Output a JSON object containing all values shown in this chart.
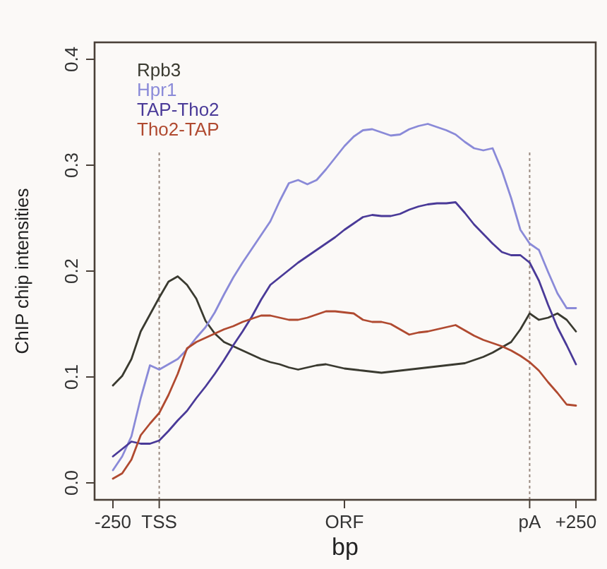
{
  "chart_data": {
    "type": "line",
    "xlabel": "bp",
    "ylabel": "ChIP chip intensities",
    "categories": [
      "-250",
      null,
      null,
      null,
      null,
      "TSS",
      null,
      null,
      null,
      null,
      null,
      null,
      null,
      null,
      null,
      null,
      null,
      null,
      null,
      null,
      null,
      null,
      null,
      null,
      null,
      "ORF",
      null,
      null,
      null,
      null,
      null,
      null,
      null,
      null,
      null,
      null,
      null,
      null,
      null,
      null,
      null,
      null,
      null,
      null,
      null,
      "pA",
      null,
      null,
      null,
      null,
      "+250"
    ],
    "ylim": [
      -0.016,
      0.416
    ],
    "yticks": [
      {
        "value": 0,
        "label": "0.0"
      },
      0.1,
      0.2,
      0.3,
      0.4
    ],
    "grid": false,
    "legend": "top left",
    "marker": "none",
    "line_style": "solid",
    "ref_lines": [
      {
        "axis": "x",
        "value": "TSS",
        "line_style": "dotted",
        "color": "#9a8a80"
      },
      {
        "axis": "x",
        "value": "pA",
        "line_style": "dotted",
        "color": "#9a8a80"
      }
    ],
    "series": [
      {
        "name": "Rpb3",
        "color": "#3a3a30",
        "values": [
          0.092,
          0.101,
          0.117,
          0.143,
          0.159,
          0.175,
          0.19,
          0.195,
          0.187,
          0.174,
          0.153,
          0.141,
          0.133,
          0.129,
          0.125,
          0.121,
          0.117,
          0.114,
          0.112,
          0.109,
          0.107,
          0.109,
          0.111,
          0.112,
          0.11,
          0.108,
          0.107,
          0.106,
          0.105,
          0.104,
          0.105,
          0.106,
          0.107,
          0.108,
          0.109,
          0.11,
          0.111,
          0.112,
          0.113,
          0.116,
          0.119,
          0.123,
          0.128,
          0.133,
          0.145,
          0.16,
          0.154,
          0.156,
          0.16,
          0.154,
          0.143
        ]
      },
      {
        "name": "Hpr1",
        "color": "#8a8ad8",
        "values": [
          0.012,
          0.025,
          0.044,
          0.08,
          0.111,
          0.107,
          0.112,
          0.117,
          0.126,
          0.137,
          0.147,
          0.161,
          0.178,
          0.194,
          0.208,
          0.221,
          0.234,
          0.247,
          0.266,
          0.283,
          0.286,
          0.282,
          0.286,
          0.296,
          0.307,
          0.318,
          0.327,
          0.333,
          0.334,
          0.331,
          0.328,
          0.329,
          0.334,
          0.337,
          0.339,
          0.336,
          0.333,
          0.329,
          0.322,
          0.316,
          0.314,
          0.316,
          0.295,
          0.269,
          0.239,
          0.226,
          0.22,
          0.199,
          0.179,
          0.165,
          0.165
        ]
      },
      {
        "name": "TAP-Tho2",
        "color": "#4a3a98",
        "values": [
          0.025,
          0.032,
          0.039,
          0.037,
          0.037,
          0.04,
          0.049,
          0.059,
          0.068,
          0.08,
          0.091,
          0.103,
          0.116,
          0.13,
          0.143,
          0.157,
          0.173,
          0.187,
          0.194,
          0.201,
          0.208,
          0.214,
          0.22,
          0.226,
          0.232,
          0.239,
          0.245,
          0.251,
          0.253,
          0.252,
          0.252,
          0.254,
          0.258,
          0.261,
          0.263,
          0.264,
          0.264,
          0.265,
          0.255,
          0.244,
          0.235,
          0.226,
          0.218,
          0.215,
          0.215,
          0.208,
          0.191,
          0.168,
          0.147,
          0.13,
          0.112
        ]
      },
      {
        "name": "Tho2-TAP",
        "color": "#b04a30",
        "values": [
          0.004,
          0.009,
          0.022,
          0.045,
          0.056,
          0.066,
          0.083,
          0.103,
          0.127,
          0.133,
          0.137,
          0.141,
          0.145,
          0.148,
          0.152,
          0.155,
          0.158,
          0.158,
          0.156,
          0.154,
          0.154,
          0.156,
          0.159,
          0.162,
          0.162,
          0.161,
          0.16,
          0.154,
          0.152,
          0.152,
          0.15,
          0.145,
          0.14,
          0.142,
          0.143,
          0.145,
          0.147,
          0.149,
          0.144,
          0.139,
          0.135,
          0.132,
          0.129,
          0.125,
          0.12,
          0.114,
          0.106,
          0.095,
          0.085,
          0.074,
          0.073
        ]
      }
    ]
  }
}
